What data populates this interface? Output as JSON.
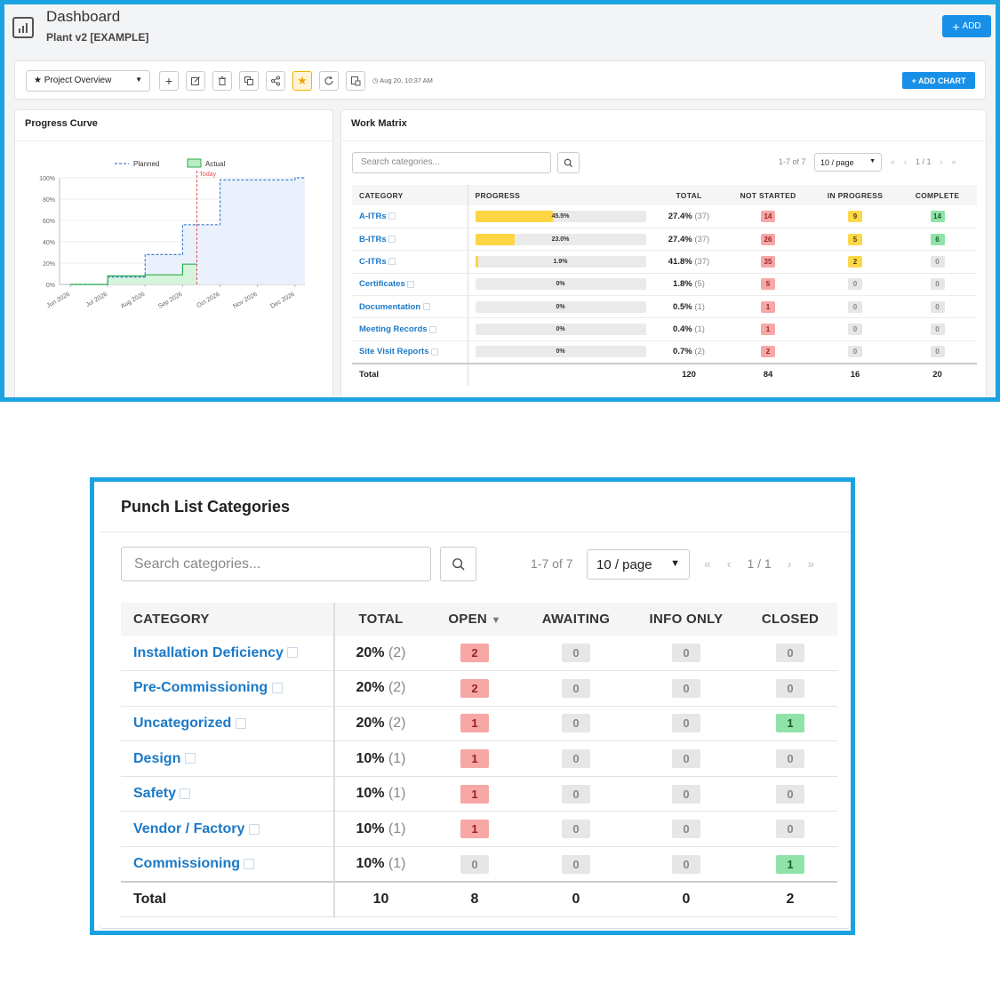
{
  "header": {
    "title": "Dashboard",
    "subtitle": "Plant v2 [EXAMPLE]",
    "add_label": "ADD"
  },
  "toolbar": {
    "view_select": "★ Project Overview",
    "timestamp": "Aug 20, 10:37 AM",
    "add_chart_label": "+ ADD CHART"
  },
  "progress_curve": {
    "title": "Progress Curve",
    "chart_data": {
      "type": "line",
      "title": "Progress Curve",
      "legend": [
        "Planned",
        "Actual"
      ],
      "legend_position": "top",
      "y_ticks": [
        "100%",
        "80%",
        "60%",
        "40%",
        "20%",
        "0%"
      ],
      "x_ticks": [
        "Jun 2026",
        "Jul 2026",
        "Aug 2026",
        "Sep 2026",
        "Oct 2026",
        "Nov 2026",
        "Dec 2026"
      ],
      "ylim": [
        0,
        100
      ],
      "today_label": "Today",
      "series": [
        {
          "name": "Planned",
          "style": "step-dashed",
          "color": "#3b7fd6",
          "points": [
            [
              "Jun 2026",
              0
            ],
            [
              "Jul 2026",
              7
            ],
            [
              "Aug 2026",
              28
            ],
            [
              "Sep 2026",
              56
            ],
            [
              "Oct 2026",
              98
            ],
            [
              "Dec 2026",
              100
            ]
          ]
        },
        {
          "name": "Actual",
          "style": "step-filled",
          "color": "#2fae4e",
          "points": [
            [
              "Jun 2026",
              0
            ],
            [
              "Jul 2026",
              8
            ],
            [
              "Aug 2026",
              9
            ],
            [
              "Sep 2026",
              19
            ],
            [
              "Today",
              19
            ]
          ]
        }
      ]
    }
  },
  "work_matrix": {
    "title": "Work Matrix",
    "search_placeholder": "Search categories...",
    "range": "1-7 of 7",
    "page_size": "10 / page",
    "page": "1 / 1",
    "columns": [
      "CATEGORY",
      "PROGRESS",
      "TOTAL",
      "NOT STARTED",
      "IN PROGRESS",
      "COMPLETE"
    ],
    "rows": [
      {
        "name": "A-ITRs",
        "progress": "45.5%",
        "pct": 45.5,
        "total": "27.4%",
        "count": "(37)",
        "not_started": "14",
        "in_progress": "9",
        "complete": "14"
      },
      {
        "name": "B-ITRs",
        "progress": "23.0%",
        "pct": 23.0,
        "total": "27.4%",
        "count": "(37)",
        "not_started": "26",
        "in_progress": "5",
        "complete": "6"
      },
      {
        "name": "C-ITRs",
        "progress": "1.9%",
        "pct": 1.9,
        "total": "41.8%",
        "count": "(37)",
        "not_started": "35",
        "in_progress": "2",
        "complete": "0"
      },
      {
        "name": "Certificates",
        "progress": "0%",
        "pct": 0,
        "total": "1.8%",
        "count": "(5)",
        "not_started": "5",
        "in_progress": "0",
        "complete": "0"
      },
      {
        "name": "Documentation",
        "progress": "0%",
        "pct": 0,
        "total": "0.5%",
        "count": "(1)",
        "not_started": "1",
        "in_progress": "0",
        "complete": "0"
      },
      {
        "name": "Meeting Records",
        "progress": "0%",
        "pct": 0,
        "total": "0.4%",
        "count": "(1)",
        "not_started": "1",
        "in_progress": "0",
        "complete": "0"
      },
      {
        "name": "Site Visit Reports",
        "progress": "0%",
        "pct": 0,
        "total": "0.7%",
        "count": "(2)",
        "not_started": "2",
        "in_progress": "0",
        "complete": "0"
      }
    ],
    "total_row": {
      "label": "Total",
      "total": "120",
      "not_started": "84",
      "in_progress": "16",
      "complete": "20"
    }
  },
  "punch_list": {
    "title": "Punch List Categories",
    "search_placeholder": "Search categories...",
    "range": "1-7 of 7",
    "page_size": "10 / page",
    "page": "1 / 1",
    "columns": [
      "CATEGORY",
      "TOTAL",
      "OPEN",
      "AWAITING",
      "INFO ONLY",
      "CLOSED"
    ],
    "sort_indicator": "▼",
    "rows": [
      {
        "name": "Installation Deficiency",
        "total": "20%",
        "count": "(2)",
        "open": "2",
        "awaiting": "0",
        "info_only": "0",
        "closed": "0"
      },
      {
        "name": "Pre-Commissioning",
        "total": "20%",
        "count": "(2)",
        "open": "2",
        "awaiting": "0",
        "info_only": "0",
        "closed": "0"
      },
      {
        "name": "Uncategorized",
        "total": "20%",
        "count": "(2)",
        "open": "1",
        "awaiting": "0",
        "info_only": "0",
        "closed": "1"
      },
      {
        "name": "Design",
        "total": "10%",
        "count": "(1)",
        "open": "1",
        "awaiting": "0",
        "info_only": "0",
        "closed": "0"
      },
      {
        "name": "Safety",
        "total": "10%",
        "count": "(1)",
        "open": "1",
        "awaiting": "0",
        "info_only": "0",
        "closed": "0"
      },
      {
        "name": "Vendor / Factory",
        "total": "10%",
        "count": "(1)",
        "open": "1",
        "awaiting": "0",
        "info_only": "0",
        "closed": "0"
      },
      {
        "name": "Commissioning",
        "total": "10%",
        "count": "(1)",
        "open": "0",
        "awaiting": "0",
        "info_only": "0",
        "closed": "1"
      }
    ],
    "total_row": {
      "label": "Total",
      "total": "10",
      "open": "8",
      "awaiting": "0",
      "info_only": "0",
      "closed": "2"
    }
  },
  "colors": {
    "accent": "#1890e8",
    "frame": "#1aa3e0",
    "link": "#1b79c8",
    "red": "#f6a7a6",
    "yellow": "#fbd84a",
    "green": "#8fe3a8"
  }
}
